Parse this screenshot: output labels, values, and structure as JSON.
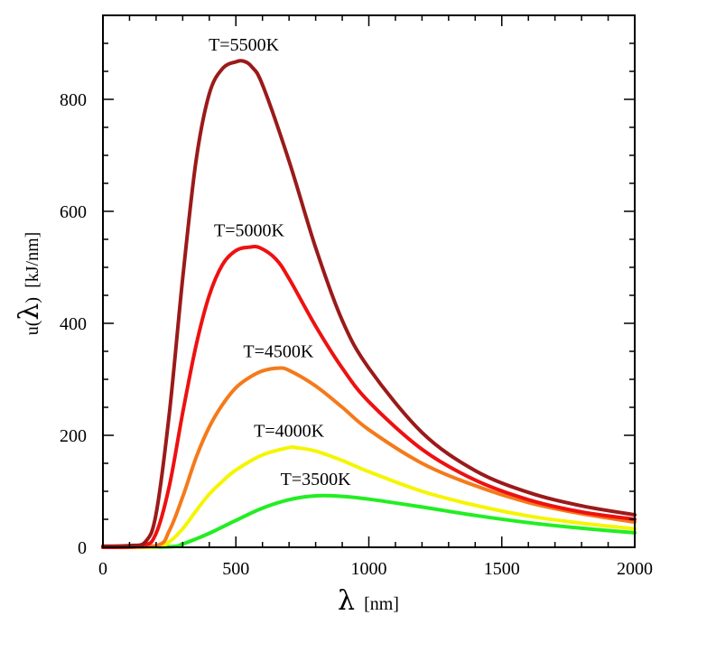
{
  "chart_data": {
    "type": "line",
    "xlabel": {
      "symbol": "λ",
      "unit": "[nm]"
    },
    "ylabel": {
      "prefix": "u(",
      "symbol": "λ",
      "suffix": ")",
      "unit": "[kJ/nm]"
    },
    "xlim": [
      0,
      2000
    ],
    "ylim": [
      0,
      950
    ],
    "xticks": [
      0,
      500,
      1000,
      1500,
      2000
    ],
    "yticks": [
      0,
      200,
      400,
      600,
      800
    ],
    "grid": false,
    "series": [
      {
        "name": "T=5500K",
        "color": "#9b1a1a",
        "x": [
          0,
          100,
          160,
          200,
          250,
          300,
          350,
          400,
          450,
          500,
          530,
          560,
          600,
          700,
          800,
          900,
          1000,
          1200,
          1400,
          1600,
          1800,
          2000
        ],
        "y": [
          2,
          3,
          10,
          60,
          240,
          480,
          690,
          810,
          855,
          867,
          868,
          858,
          826,
          690,
          535,
          405,
          320,
          205,
          137,
          98,
          74,
          58
        ]
      },
      {
        "name": "T=5000K",
        "color": "#ee1111",
        "x": [
          0,
          150,
          200,
          250,
          300,
          350,
          400,
          450,
          500,
          550,
          590,
          650,
          700,
          800,
          900,
          1000,
          1200,
          1400,
          1600,
          1800,
          2000
        ],
        "y": [
          0,
          3,
          25,
          110,
          240,
          360,
          450,
          505,
          530,
          536,
          535,
          515,
          480,
          395,
          320,
          260,
          175,
          120,
          85,
          63,
          50
        ]
      },
      {
        "name": "T=4500K",
        "color": "#f57a1a",
        "x": [
          0,
          200,
          250,
          300,
          350,
          400,
          450,
          500,
          550,
          600,
          660,
          700,
          800,
          900,
          1000,
          1200,
          1400,
          1600,
          1800,
          2000
        ],
        "y": [
          0,
          3,
          30,
          90,
          160,
          215,
          255,
          285,
          303,
          315,
          320,
          316,
          288,
          250,
          210,
          150,
          110,
          80,
          60,
          45
        ]
      },
      {
        "name": "T=4000K",
        "color": "#f5f500",
        "x": [
          0,
          200,
          250,
          300,
          350,
          400,
          450,
          500,
          600,
          700,
          725,
          800,
          900,
          1000,
          1200,
          1400,
          1600,
          1800,
          2000
        ],
        "y": [
          0,
          1,
          10,
          33,
          65,
          95,
          118,
          138,
          165,
          178,
          178,
          172,
          155,
          135,
          100,
          75,
          56,
          43,
          33
        ]
      },
      {
        "name": "T=3500K",
        "color": "#22ee22",
        "x": [
          0,
          250,
          300,
          350,
          400,
          500,
          600,
          700,
          800,
          900,
          1000,
          1200,
          1400,
          1600,
          1800,
          2000
        ],
        "y": [
          0,
          1,
          6,
          15,
          25,
          48,
          70,
          85,
          92,
          91,
          86,
          72,
          57,
          44,
          34,
          26
        ]
      }
    ]
  }
}
